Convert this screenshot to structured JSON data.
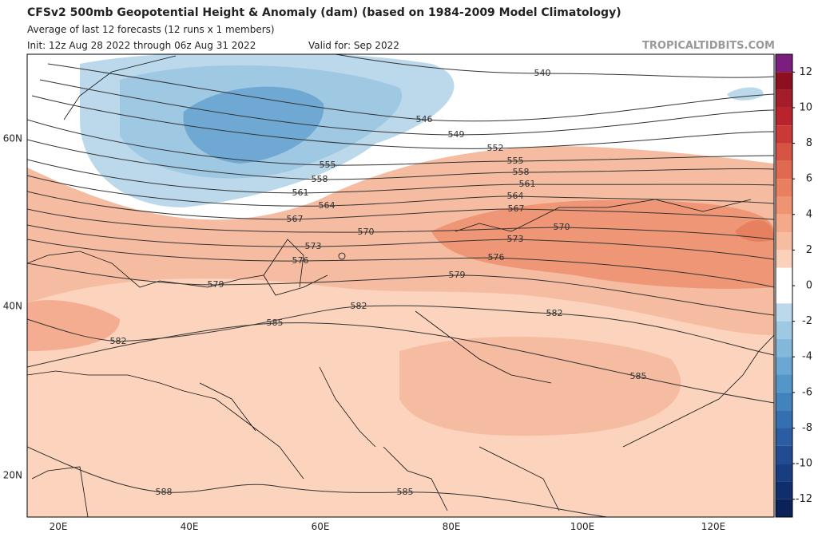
{
  "header": {
    "title": "CFSv2 500mb Geopotential Height & Anomaly (dam) (based on 1984-2009 Model Climatology)",
    "subtitle": "Average of last 12 forecasts (12 runs x 1 members)",
    "init": "Init: 12z Aug 28 2022 through 06z Aug 31 2022",
    "valid": "Valid for: Sep 2022",
    "watermark": "TROPICALTIDBITS.COM"
  },
  "axes": {
    "lat_labels": [
      "60N",
      "40N",
      "20N"
    ],
    "lon_labels": [
      "20E",
      "40E",
      "60E",
      "80E",
      "100E",
      "120E"
    ]
  },
  "contour_labels": [
    540,
    546,
    549,
    552,
    555,
    555,
    558,
    558,
    561,
    561,
    564,
    564,
    567,
    567,
    570,
    570,
    573,
    573,
    576,
    576,
    579,
    579,
    582,
    582,
    582,
    585,
    585,
    585,
    588
  ],
  "colorbar": {
    "range": [
      -13,
      13
    ],
    "ticks": [
      12,
      10,
      8,
      6,
      4,
      2,
      0,
      -2,
      -4,
      -6,
      -8,
      -10,
      -12
    ],
    "colors": [
      "#7b1f7e",
      "#8c1020",
      "#a51c2a",
      "#b8232e",
      "#c93a36",
      "#d65444",
      "#e06a50",
      "#e8805f",
      "#ee9472",
      "#f3a98a",
      "#f6bda1",
      "#fad1ba",
      "#ffffff",
      "#ffffff",
      "#bcd9ec",
      "#9fc8e3",
      "#83b8db",
      "#6aa7d2",
      "#5596c8",
      "#4282bd",
      "#346fb0",
      "#2a5da2",
      "#214c91",
      "#183d80",
      "#112e6c",
      "#0b2258"
    ]
  }
}
